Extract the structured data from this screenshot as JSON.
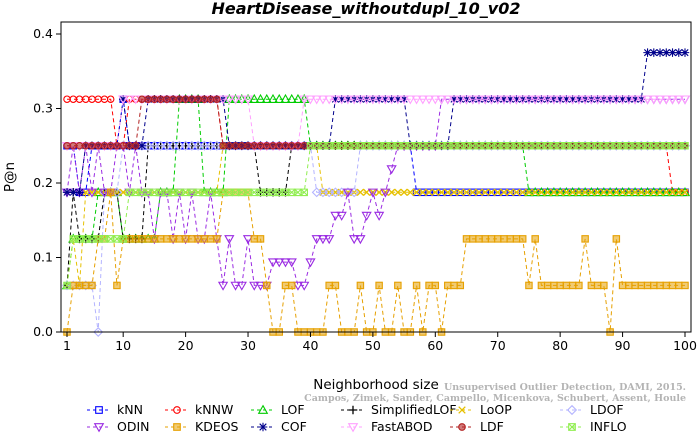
{
  "chart_data": {
    "type": "line",
    "title": "HeartDisease_withoutdupl_10_v02",
    "xlabel": "Neighborhood size",
    "ylabel": "P@n",
    "xlim": [
      1,
      100
    ],
    "ylim": [
      0,
      0.4
    ],
    "xticks": [
      1,
      10,
      20,
      30,
      40,
      50,
      60,
      70,
      80,
      90,
      100
    ],
    "yticks": [
      0.0,
      0.1,
      0.2,
      0.3,
      0.4
    ],
    "ytick_labels": [
      "0.0",
      "0.1",
      "0.2",
      "0.3",
      "0.4"
    ],
    "grid": false,
    "legend_position": "bottom",
    "credit_lines": [
      "Campos, Zimek, Sander, Campello, Micenkova, Schubert, Assent, Houle",
      "Unsupervised Outlier Detection, DAMI, 2015."
    ],
    "series": [
      {
        "name": "kNN",
        "color": "#0000ff",
        "marker": "square",
        "segments": [
          [
            1,
            0.25
          ],
          [
            2,
            0.25
          ],
          [
            3,
            0.1875
          ],
          [
            5,
            0.25
          ],
          [
            10,
            0.3125
          ],
          [
            11,
            0.25
          ],
          [
            56,
            0.25
          ],
          [
            57,
            0.1875
          ],
          [
            100,
            0.1875
          ]
        ]
      },
      {
        "name": "kNNW",
        "color": "#ff0000",
        "marker": "circle",
        "segments": [
          [
            1,
            0.3125
          ],
          [
            8,
            0.3125
          ],
          [
            9,
            0.25
          ],
          [
            11,
            0.3125
          ],
          [
            25,
            0.3125
          ],
          [
            26,
            0.25
          ],
          [
            97,
            0.25
          ],
          [
            98,
            0.1875
          ],
          [
            100,
            0.1875
          ]
        ]
      },
      {
        "name": "LOF",
        "color": "#00cc00",
        "marker": "triangle-up",
        "segments": [
          [
            1,
            0.0625
          ],
          [
            2,
            0.125
          ],
          [
            5,
            0.125
          ],
          [
            6,
            0.1875
          ],
          [
            9,
            0.1875
          ],
          [
            10,
            0.125
          ],
          [
            15,
            0.125
          ],
          [
            16,
            0.1875
          ],
          [
            18,
            0.1875
          ],
          [
            19,
            0.3125
          ],
          [
            22,
            0.3125
          ],
          [
            23,
            0.1875
          ],
          [
            26,
            0.1875
          ],
          [
            27,
            0.3125
          ],
          [
            39,
            0.3125
          ],
          [
            40,
            0.25
          ],
          [
            59,
            0.25
          ],
          [
            60,
            0.25
          ],
          [
            74,
            0.25
          ],
          [
            75,
            0.1875
          ],
          [
            100,
            0.1875
          ]
        ]
      },
      {
        "name": "SimplifiedLOF",
        "color": "#000000",
        "marker": "plus",
        "segments": [
          [
            1,
            0.0625
          ],
          [
            2,
            0.1875
          ],
          [
            3,
            0.125
          ],
          [
            6,
            0.125
          ],
          [
            7,
            0.1875
          ],
          [
            9,
            0.1875
          ],
          [
            10,
            0.125
          ],
          [
            13,
            0.125
          ],
          [
            14,
            0.25
          ],
          [
            31,
            0.25
          ],
          [
            32,
            0.1875
          ],
          [
            36,
            0.1875
          ],
          [
            37,
            0.25
          ],
          [
            100,
            0.25
          ]
        ]
      },
      {
        "name": "LoOP",
        "color": "#e6c000",
        "marker": "x",
        "segments": [
          [
            1,
            0.0625
          ],
          [
            2,
            0.125
          ],
          [
            3,
            0.0625
          ],
          [
            4,
            0.1875
          ],
          [
            25,
            0.1875
          ],
          [
            26,
            0.25
          ],
          [
            41,
            0.25
          ],
          [
            42,
            0.1875
          ],
          [
            100,
            0.1875
          ]
        ]
      },
      {
        "name": "LDOF",
        "color": "#b4b4ff",
        "marker": "diamond",
        "segments": [
          [
            1,
            0.0625
          ],
          [
            3,
            0.0625
          ],
          [
            4,
            0.0625
          ],
          [
            5,
            0.0625
          ],
          [
            6,
            0.0
          ],
          [
            7,
            0.1875
          ],
          [
            10,
            0.25
          ],
          [
            40,
            0.25
          ],
          [
            41,
            0.1875
          ],
          [
            47,
            0.1875
          ],
          [
            48,
            0.25
          ],
          [
            100,
            0.25
          ]
        ]
      },
      {
        "name": "ODIN",
        "color": "#9a2be2",
        "marker": "triangle-down",
        "segments": [
          [
            1,
            0.1875
          ],
          [
            2,
            0.25
          ],
          [
            3,
            0.1875
          ],
          [
            4,
            0.25
          ],
          [
            5,
            0.1875
          ],
          [
            6,
            0.25
          ],
          [
            7,
            0.1875
          ],
          [
            8,
            0.1875
          ],
          [
            9,
            0.25
          ],
          [
            10,
            0.25
          ],
          [
            11,
            0.1875
          ],
          [
            12,
            0.25
          ],
          [
            13,
            0.1875
          ],
          [
            14,
            0.1875
          ],
          [
            15,
            0.125
          ],
          [
            16,
            0.1875
          ],
          [
            17,
            0.1875
          ],
          [
            18,
            0.125
          ],
          [
            19,
            0.1875
          ],
          [
            20,
            0.125
          ],
          [
            21,
            0.1875
          ],
          [
            22,
            0.125
          ],
          [
            23,
            0.125
          ],
          [
            24,
            0.1875
          ],
          [
            25,
            0.125
          ],
          [
            26,
            0.0625
          ],
          [
            27,
            0.125
          ],
          [
            28,
            0.0625
          ],
          [
            29,
            0.0625
          ],
          [
            30,
            0.125
          ],
          [
            31,
            0.0625
          ],
          [
            32,
            0.0625
          ],
          [
            33,
            0.0625
          ],
          [
            34,
            0.0938
          ],
          [
            35,
            0.0938
          ],
          [
            36,
            0.0938
          ],
          [
            37,
            0.0938
          ],
          [
            38,
            0.0625
          ],
          [
            39,
            0.0625
          ],
          [
            40,
            0.0938
          ],
          [
            41,
            0.125
          ],
          [
            42,
            0.125
          ],
          [
            43,
            0.125
          ],
          [
            44,
            0.1563
          ],
          [
            45,
            0.1563
          ],
          [
            46,
            0.1875
          ],
          [
            47,
            0.125
          ],
          [
            48,
            0.125
          ],
          [
            49,
            0.1563
          ],
          [
            50,
            0.1875
          ],
          [
            51,
            0.1563
          ],
          [
            52,
            0.1875
          ],
          [
            53,
            0.2188
          ],
          [
            54,
            0.25
          ],
          [
            55,
            0.25
          ],
          [
            56,
            0.25
          ],
          [
            57,
            0.25
          ],
          [
            58,
            0.25
          ],
          [
            59,
            0.25
          ],
          [
            60,
            0.25
          ],
          [
            61,
            0.3125
          ],
          [
            62,
            0.3125
          ],
          [
            100,
            0.3125
          ]
        ]
      },
      {
        "name": "KDEOS",
        "color": "#e6a000",
        "marker": "square-filled",
        "segments": [
          [
            1,
            0.0
          ],
          [
            2,
            0.0625
          ],
          [
            3,
            0.0625
          ],
          [
            5,
            0.0625
          ],
          [
            6,
            0.125
          ],
          [
            7,
            0.125
          ],
          [
            8,
            0.1875
          ],
          [
            9,
            0.0625
          ],
          [
            10,
            0.125
          ],
          [
            25,
            0.125
          ],
          [
            26,
            0.1875
          ],
          [
            30,
            0.1875
          ],
          [
            31,
            0.125
          ],
          [
            32,
            0.125
          ],
          [
            33,
            0.0625
          ],
          [
            34,
            0.0
          ],
          [
            35,
            0.0
          ],
          [
            36,
            0.0625
          ],
          [
            37,
            0.0625
          ],
          [
            38,
            0.0
          ],
          [
            42,
            0.0
          ],
          [
            43,
            0.0625
          ],
          [
            44,
            0.0625
          ],
          [
            45,
            0.0
          ],
          [
            47,
            0.0
          ],
          [
            48,
            0.0625
          ],
          [
            49,
            0.0
          ],
          [
            50,
            0.0
          ],
          [
            51,
            0.0625
          ],
          [
            52,
            0.0
          ],
          [
            53,
            0.0
          ],
          [
            54,
            0.0625
          ],
          [
            55,
            0.0
          ],
          [
            56,
            0.0
          ],
          [
            57,
            0.0625
          ],
          [
            58,
            0.0
          ],
          [
            59,
            0.0625
          ],
          [
            60,
            0.0625
          ],
          [
            61,
            0.0
          ],
          [
            62,
            0.0625
          ],
          [
            64,
            0.0625
          ],
          [
            65,
            0.125
          ],
          [
            74,
            0.125
          ],
          [
            75,
            0.0625
          ],
          [
            76,
            0.125
          ],
          [
            77,
            0.0625
          ],
          [
            83,
            0.0625
          ],
          [
            84,
            0.125
          ],
          [
            85,
            0.0625
          ],
          [
            87,
            0.0625
          ],
          [
            88,
            0.0
          ],
          [
            89,
            0.125
          ],
          [
            90,
            0.0625
          ],
          [
            100,
            0.0625
          ]
        ]
      },
      {
        "name": "COF",
        "color": "#00008b",
        "marker": "star",
        "segments": [
          [
            1,
            0.1875
          ],
          [
            3,
            0.1875
          ],
          [
            4,
            0.25
          ],
          [
            10,
            0.3125
          ],
          [
            11,
            0.25
          ],
          [
            14,
            0.3125
          ],
          [
            26,
            0.3125
          ],
          [
            27,
            0.25
          ],
          [
            43,
            0.25
          ],
          [
            44,
            0.3125
          ],
          [
            55,
            0.3125
          ],
          [
            56,
            0.25
          ],
          [
            62,
            0.25
          ],
          [
            63,
            0.3125
          ],
          [
            93,
            0.3125
          ],
          [
            94,
            0.375
          ],
          [
            100,
            0.375
          ]
        ]
      },
      {
        "name": "FastABOD",
        "color": "#ffa0ff",
        "marker": "triangle-down-open",
        "segments": [
          [
            1,
            0.25
          ],
          [
            9,
            0.25
          ],
          [
            10,
            0.3125
          ],
          [
            30,
            0.3125
          ],
          [
            31,
            0.25
          ],
          [
            38,
            0.25
          ],
          [
            39,
            0.3125
          ],
          [
            100,
            0.3125
          ]
        ]
      },
      {
        "name": "LDF",
        "color": "#b22222",
        "marker": "circle-filled",
        "segments": [
          [
            1,
            0.25
          ],
          [
            12,
            0.25
          ],
          [
            13,
            0.3125
          ],
          [
            25,
            0.3125
          ],
          [
            26,
            0.25
          ],
          [
            100,
            0.25
          ]
        ]
      },
      {
        "name": "INFLO",
        "color": "#90ee50",
        "marker": "box-x",
        "segments": [
          [
            1,
            0.0625
          ],
          [
            2,
            0.125
          ],
          [
            10,
            0.125
          ],
          [
            11,
            0.1875
          ],
          [
            14,
            0.1875
          ],
          [
            15,
            0.1875
          ],
          [
            39,
            0.1875
          ],
          [
            40,
            0.25
          ],
          [
            100,
            0.25
          ]
        ]
      }
    ]
  }
}
